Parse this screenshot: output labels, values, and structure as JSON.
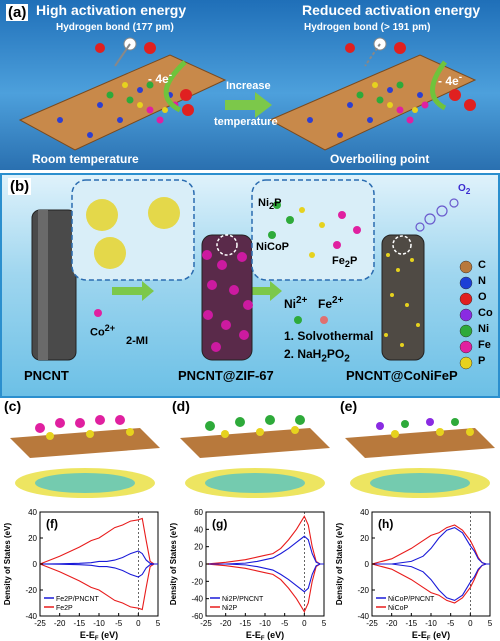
{
  "panel_a": {
    "label": "(a)",
    "left_title": "High activation energy",
    "left_hbond": "Hydrogen bond (177 pm)",
    "left_reaction": "- 4e",
    "left_reaction_sup": "-",
    "left_caption": "Room temperature",
    "arrow_text_1": "Increase",
    "arrow_text_2": "temperature",
    "right_title": "Reduced activation energy",
    "right_hbond": "Hydrogen bond (> 191 pm)",
    "right_reaction": "- 4e",
    "right_reaction_sup": "-",
    "right_caption": "Overboiling point"
  },
  "panel_b": {
    "label": "(b)",
    "pncnt_label": "PNCNT",
    "co_ion": "Co",
    "co_ion_sup": "2+",
    "mi_label": "2-MI",
    "zif_label": "PNCNT@ZIF-67",
    "ni2p_label": "Ni",
    "ni2p_sub": "2",
    "ni2p_tail": "P",
    "nicop_label": "NiCoP",
    "fe2p_label": "Fe",
    "fe2p_sub": "2",
    "fe2p_tail": "P",
    "ni_ion": "Ni",
    "ni_ion_sup": "2+",
    "fe_ion": "Fe",
    "fe_ion_sup": "2+",
    "step1": "1. Solvothermal",
    "step2": "2. NaH",
    "step2_sub": "2",
    "step2_tail": "PO",
    "step2_sub2": "2",
    "product_label": "PNCNT@CoNiFeP",
    "o2_label": "O",
    "o2_sub": "2",
    "legend": [
      {
        "label": "C",
        "color": "#b8793c"
      },
      {
        "label": "N",
        "color": "#1c3fd6"
      },
      {
        "label": "O",
        "color": "#e02020"
      },
      {
        "label": "Co",
        "color": "#8a2be2"
      },
      {
        "label": "Ni",
        "color": "#2eaa3a"
      },
      {
        "label": "Fe",
        "color": "#e020a0"
      },
      {
        "label": "P",
        "color": "#e6d21e"
      }
    ]
  },
  "structure_labels": {
    "c": "(c)",
    "d": "(d)",
    "e": "(e)"
  },
  "chart_data": [
    {
      "type": "line",
      "label": "(f)",
      "xlabel": "E-E",
      "xlabel_sub": "F",
      "xlabel_unit": " (eV)",
      "ylabel": "Density of States (eV)",
      "xlim": [
        -25,
        5
      ],
      "ylim": [
        -40,
        40
      ],
      "xticks": [
        -25,
        -20,
        -15,
        -10,
        -5,
        0,
        5
      ],
      "yticks": [
        -40,
        -20,
        0,
        20,
        40
      ],
      "legend_position": "bottom-left",
      "series": [
        {
          "name": "Fe2P/PNCNT",
          "color": "#1a1ad8",
          "x": [
            -25,
            -20,
            -15,
            -12,
            -10,
            -8,
            -6,
            -4,
            -2,
            0,
            1,
            2,
            3,
            4,
            5
          ],
          "up": [
            0,
            0.2,
            0.5,
            1,
            2,
            2,
            3,
            5,
            8,
            10,
            8,
            3,
            0.5,
            0,
            0
          ],
          "down": [
            0,
            -0.2,
            -0.5,
            -1,
            -2,
            -2,
            -3,
            -5,
            -8,
            -10,
            -8,
            -3,
            -0.5,
            0,
            0
          ]
        },
        {
          "name": "Fe2P",
          "color": "#e81c1c",
          "x": [
            -25,
            -20,
            -15,
            -12,
            -10,
            -8,
            -6,
            -4,
            -2,
            0,
            1,
            2,
            3,
            4,
            5
          ],
          "up": [
            0,
            6,
            13,
            18,
            20,
            24,
            28,
            30,
            33,
            34,
            35,
            18,
            2,
            0,
            0
          ],
          "down": [
            0,
            -6,
            -13,
            -18,
            -20,
            -24,
            -28,
            -30,
            -33,
            -34,
            -35,
            -18,
            -2,
            0,
            0
          ]
        }
      ]
    },
    {
      "type": "line",
      "label": "(g)",
      "xlabel": "E-E",
      "xlabel_sub": "F",
      "xlabel_unit": " (eV)",
      "ylabel": "Density of States (eV)",
      "xlim": [
        -25,
        5
      ],
      "ylim": [
        -60,
        60
      ],
      "xticks": [
        -25,
        -20,
        -15,
        -10,
        -5,
        0,
        5
      ],
      "yticks": [
        -60,
        -40,
        -20,
        0,
        20,
        40,
        60
      ],
      "legend_position": "bottom-left",
      "series": [
        {
          "name": "Ni2P/PNCNT",
          "color": "#1a1ad8",
          "x": [
            -25,
            -20,
            -15,
            -12,
            -10,
            -8,
            -6,
            -4,
            -2,
            0,
            1,
            2,
            3,
            4,
            5
          ],
          "up": [
            0,
            0,
            1,
            3,
            5,
            7,
            12,
            18,
            25,
            32,
            28,
            12,
            2,
            0,
            0
          ],
          "down": [
            0,
            0,
            -1,
            -3,
            -5,
            -7,
            -12,
            -18,
            -25,
            -32,
            -28,
            -12,
            -2,
            0,
            0
          ]
        },
        {
          "name": "Ni2P",
          "color": "#e81c1c",
          "x": [
            -25,
            -20,
            -15,
            -12,
            -10,
            -8,
            -6,
            -4,
            -2,
            0,
            1,
            2,
            3,
            4,
            5
          ],
          "up": [
            0,
            2,
            5,
            8,
            10,
            12,
            18,
            28,
            40,
            55,
            45,
            20,
            3,
            0,
            0
          ],
          "down": [
            0,
            -2,
            -5,
            -8,
            -10,
            -12,
            -18,
            -28,
            -40,
            -55,
            -45,
            -20,
            -3,
            0,
            0
          ]
        }
      ]
    },
    {
      "type": "line",
      "label": "(h)",
      "xlabel": "E-E",
      "xlabel_sub": "F",
      "xlabel_unit": " (eV)",
      "ylabel": "Density of States (eV)",
      "xlim": [
        -25,
        5
      ],
      "ylim": [
        -40,
        40
      ],
      "xticks": [
        -25,
        -20,
        -15,
        -10,
        -5,
        0,
        5
      ],
      "yticks": [
        -40,
        -20,
        0,
        20,
        40
      ],
      "legend_position": "bottom-left",
      "series": [
        {
          "name": "NiCoP/PNCNT",
          "color": "#1a1ad8",
          "x": [
            -25,
            -20,
            -15,
            -12,
            -10,
            -8,
            -6,
            -4,
            -2,
            0,
            1,
            2,
            3,
            4,
            5
          ],
          "up": [
            0,
            0,
            2,
            6,
            12,
            20,
            26,
            28,
            24,
            14,
            10,
            4,
            1,
            0,
            0
          ],
          "down": [
            0,
            0,
            -2,
            -6,
            -12,
            -20,
            -26,
            -28,
            -24,
            -14,
            -10,
            -4,
            -1,
            0,
            0
          ]
        },
        {
          "name": "NiCoP",
          "color": "#e81c1c",
          "x": [
            -25,
            -20,
            -15,
            -12,
            -10,
            -8,
            -6,
            -4,
            -2,
            0,
            1,
            2,
            3,
            4,
            5
          ],
          "up": [
            0,
            4,
            12,
            18,
            22,
            24,
            28,
            30,
            26,
            18,
            12,
            5,
            1,
            0,
            0
          ],
          "down": [
            0,
            -4,
            -12,
            -18,
            -22,
            -24,
            -28,
            -30,
            -26,
            -18,
            -12,
            -5,
            -1,
            0,
            0
          ]
        }
      ]
    }
  ]
}
